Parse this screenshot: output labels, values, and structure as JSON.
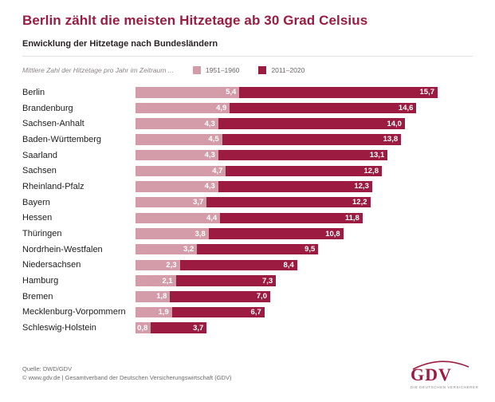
{
  "accent_color": "#9B1C40",
  "header": {
    "title": "Berlin zählt die meisten Hitzetage ab 30 Grad Celsius",
    "subtitle": "Enwicklung der Hitzetage nach Bundesländern"
  },
  "legend": {
    "intro": "Mittlere Zahl der Hitzetage pro Jahr im Zeitraum ...",
    "items": [
      {
        "label": "1951–1960",
        "color": "#D49BA8"
      },
      {
        "label": "2011–2020",
        "color": "#9B1C40"
      }
    ]
  },
  "chart_data": {
    "type": "bar",
    "orientation": "horizontal",
    "title": "Berlin zählt die meisten Hitzetage ab 30 Grad Celsius",
    "subtitle": "Enwicklung der Hitzetage nach Bundesländern",
    "xlabel": "Mittlere Zahl der Hitzetage pro Jahr",
    "xlim": [
      0,
      15.7
    ],
    "grid": false,
    "legend_position": "top",
    "categories": [
      "Berlin",
      "Brandenburg",
      "Sachsen-Anhalt",
      "Baden-Württemberg",
      "Saarland",
      "Sachsen",
      "Rheinland-Pfalz",
      "Bayern",
      "Hessen",
      "Thüringen",
      "Nordrhein-Westfalen",
      "Niedersachsen",
      "Hamburg",
      "Bremen",
      "Mecklenburg-Vorpommern",
      "Schleswig-Holstein"
    ],
    "series": [
      {
        "name": "1951–1960",
        "color": "#D49BA8",
        "values": [
          5.4,
          4.9,
          4.3,
          4.5,
          4.3,
          4.7,
          4.3,
          3.7,
          4.4,
          3.8,
          3.2,
          2.3,
          2.1,
          1.8,
          1.9,
          0.8
        ],
        "labels": [
          "5,4",
          "4,9",
          "4,3",
          "4,5",
          "4,3",
          "4,7",
          "4,3",
          "3,7",
          "4,4",
          "3,8",
          "3,2",
          "2,3",
          "2,1",
          "1,8",
          "1,9",
          "0,8"
        ]
      },
      {
        "name": "2011–2020",
        "color": "#9B1C40",
        "values": [
          15.7,
          14.6,
          14.0,
          13.8,
          13.1,
          12.8,
          12.3,
          12.2,
          11.8,
          10.8,
          9.5,
          8.4,
          7.3,
          7.0,
          6.7,
          3.7
        ],
        "labels": [
          "15,7",
          "14,6",
          "14,0",
          "13,8",
          "13,1",
          "12,8",
          "12,3",
          "12,2",
          "11,8",
          "10,8",
          "9,5",
          "8,4",
          "7,3",
          "7,0",
          "6,7",
          "3,7"
        ]
      }
    ]
  },
  "footer": {
    "source": "Quelle: DWD/GDV",
    "copyright": "© www.gdv.de | Gesamtverband der Deutschen Versicherungswirtschaft (GDV)"
  },
  "logo": {
    "text": "GDV",
    "tagline": "DIE DEUTSCHEN VERSICHERER"
  }
}
